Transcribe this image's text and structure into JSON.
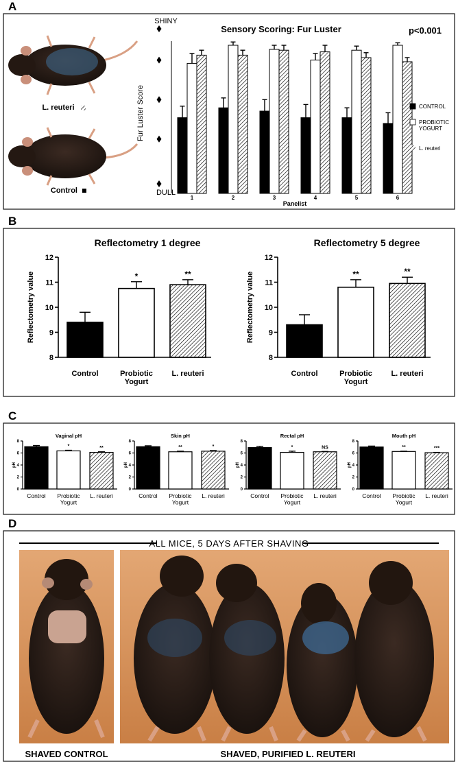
{
  "figure": {
    "panel_labels": [
      "A",
      "B",
      "C",
      "D"
    ],
    "a_mouse_labels": [
      "L. reuteri",
      "Control"
    ],
    "d_banner": "ALL MICE, 5 DAYS AFTER SHAVING",
    "d_captions": [
      "SHAVED CONTROL",
      "SHAVED, PURIFIED  L. REUTERI"
    ]
  },
  "chart_data": [
    {
      "type": "grouped-bar",
      "title": "Sensory Scoring: Fur Luster",
      "annotation": "p<0.001",
      "xlabel": "Panelist",
      "ylabel": "Fur Luster Score",
      "categories": [
        "1",
        "2",
        "3",
        "4",
        "5",
        "6"
      ],
      "ylim": [
        0,
        10
      ],
      "yticks": [
        {
          "value": 0,
          "label": "DULL"
        },
        {
          "value": 10,
          "label": "SHINY"
        }
      ],
      "legend": "right",
      "series": [
        {
          "name": "CONTROL",
          "color": "#000000",
          "hatched": false,
          "values": [
            4.6,
            5.2,
            5.0,
            4.6,
            4.6,
            4.25
          ],
          "errors": [
            0.7,
            0.6,
            0.7,
            0.8,
            0.6,
            0.65
          ]
        },
        {
          "name": "PROBIOTIC\nYOGURT",
          "color": "#ffffff",
          "hatched": false,
          "values": [
            7.9,
            9.0,
            8.75,
            8.1,
            8.7,
            9.0
          ],
          "errors": [
            0.6,
            0.2,
            0.25,
            0.4,
            0.25,
            0.15
          ]
        },
        {
          "name": "L. reuteri",
          "color": "#ffffff",
          "hatched": true,
          "values": [
            8.4,
            8.4,
            8.7,
            8.6,
            8.25,
            8.0
          ],
          "errors": [
            0.3,
            0.3,
            0.3,
            0.4,
            0.3,
            0.25
          ]
        }
      ]
    },
    {
      "type": "bar",
      "title": "Reflectometry 1 degree",
      "ylabel": "Reflectometry value",
      "categories": [
        "Control",
        "Probiotic\nYogurt",
        "L. reuteri"
      ],
      "values": [
        9.4,
        10.75,
        10.9
      ],
      "errors": [
        0.4,
        0.27,
        0.2
      ],
      "annotations": [
        null,
        "*",
        "**"
      ],
      "colors": [
        "#000000",
        "#ffffff",
        "#ffffff"
      ],
      "hatched": [
        false,
        false,
        true
      ],
      "ylim": [
        8,
        12
      ],
      "yticks": [
        8,
        9,
        10,
        11,
        12
      ]
    },
    {
      "type": "bar",
      "title": "Reflectometry 5 degree",
      "ylabel": "Reflectometry value",
      "categories": [
        "Control",
        "Probiotic\nYogurt",
        "L. reuteri"
      ],
      "values": [
        9.3,
        10.8,
        10.95
      ],
      "errors": [
        0.4,
        0.3,
        0.25
      ],
      "annotations": [
        null,
        "**",
        "**"
      ],
      "colors": [
        "#000000",
        "#ffffff",
        "#ffffff"
      ],
      "hatched": [
        false,
        false,
        true
      ],
      "ylim": [
        8,
        12
      ],
      "yticks": [
        8,
        9,
        10,
        11,
        12
      ]
    },
    {
      "type": "bar",
      "title": "Vaginal pH",
      "ylabel": "pH",
      "categories": [
        "Control",
        "Probiotic\nYogurt",
        "L. reuteri"
      ],
      "values": [
        7.05,
        6.35,
        6.1
      ],
      "errors": [
        0.2,
        0.1,
        0.1
      ],
      "annotations": [
        null,
        "*",
        "**"
      ],
      "colors": [
        "#000000",
        "#ffffff",
        "#ffffff"
      ],
      "hatched": [
        false,
        false,
        true
      ],
      "ylim": [
        0,
        8
      ],
      "yticks": [
        0,
        2,
        4,
        6,
        8
      ]
    },
    {
      "type": "bar",
      "title": "Skin pH",
      "ylabel": "pH",
      "categories": [
        "Control",
        "Probiotic\nYogurt",
        "L. reuteri"
      ],
      "values": [
        7.05,
        6.2,
        6.3
      ],
      "errors": [
        0.15,
        0.1,
        0.1
      ],
      "annotations": [
        null,
        "**",
        "*"
      ],
      "colors": [
        "#000000",
        "#ffffff",
        "#ffffff"
      ],
      "hatched": [
        false,
        false,
        true
      ],
      "ylim": [
        0,
        8
      ],
      "yticks": [
        0,
        2,
        4,
        6,
        8
      ]
    },
    {
      "type": "bar",
      "title": "Rectal pH",
      "ylabel": "pH",
      "categories": [
        "Control",
        "Probiotic\nYogurt",
        "L. reuteri"
      ],
      "values": [
        6.9,
        6.1,
        6.2
      ],
      "errors": [
        0.2,
        0.2,
        0.05
      ],
      "annotations": [
        null,
        "*",
        "NS"
      ],
      "colors": [
        "#000000",
        "#ffffff",
        "#ffffff"
      ],
      "hatched": [
        false,
        false,
        true
      ],
      "ylim": [
        0,
        8
      ],
      "yticks": [
        0,
        2,
        4,
        6,
        8
      ]
    },
    {
      "type": "bar",
      "title": "Mouth pH",
      "ylabel": "pH",
      "categories": [
        "Control",
        "Probiotic\nYogurt",
        "L. reuteri"
      ],
      "values": [
        7.0,
        6.25,
        6.05
      ],
      "errors": [
        0.15,
        0.05,
        0.05
      ],
      "annotations": [
        null,
        "**",
        "***"
      ],
      "colors": [
        "#000000",
        "#ffffff",
        "#ffffff"
      ],
      "hatched": [
        false,
        false,
        true
      ],
      "ylim": [
        0,
        8
      ],
      "yticks": [
        0,
        2,
        4,
        6,
        8
      ]
    }
  ]
}
